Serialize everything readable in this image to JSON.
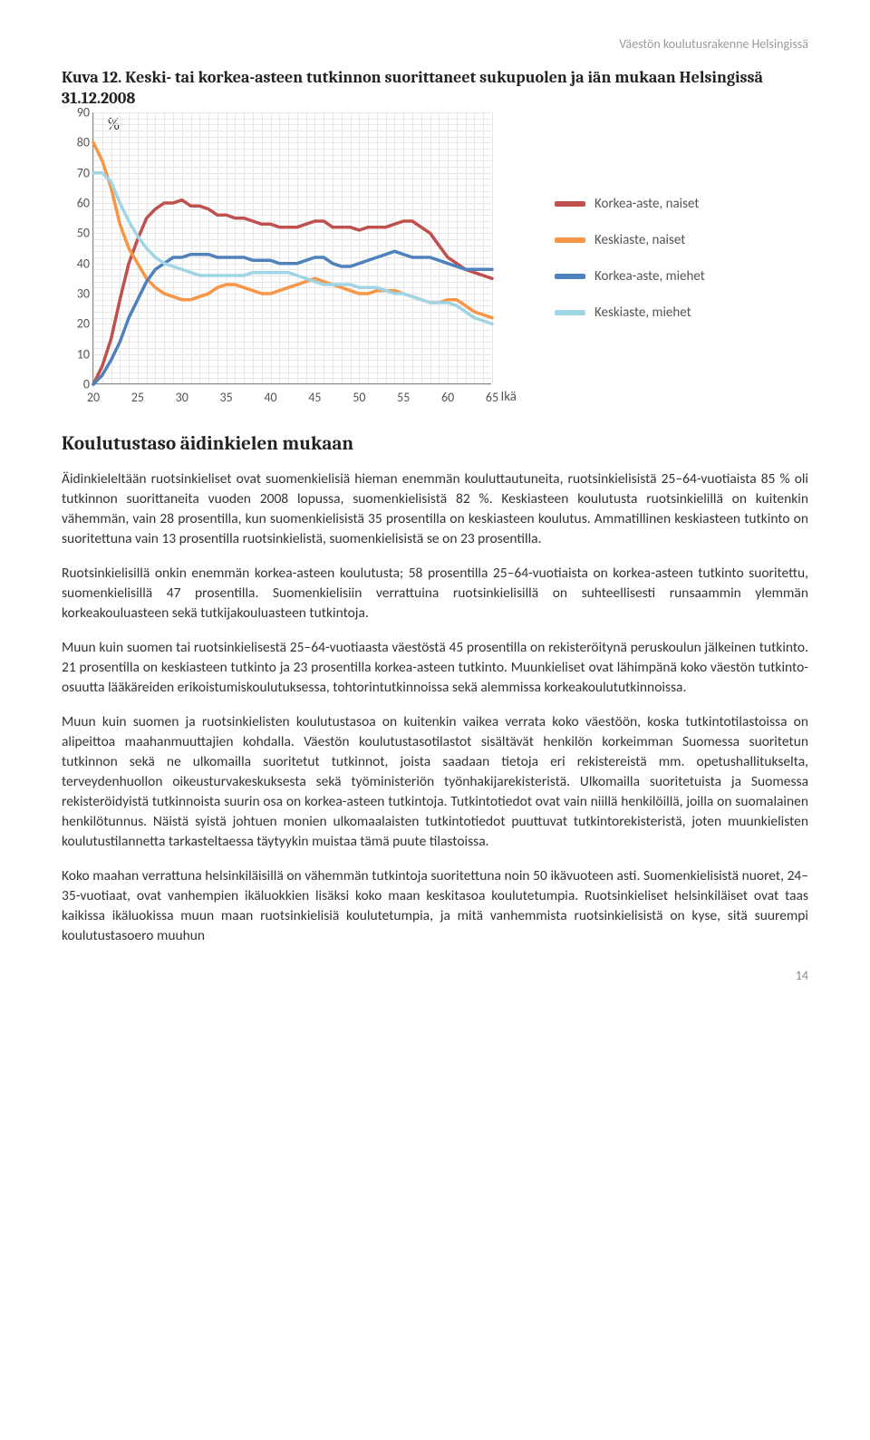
{
  "header_right": "Väestön koulutusrakenne Helsingissä",
  "figure_title": "Kuva 12. Keski- tai korkea-asteen tutkinnon suorittaneet sukupuolen ja iän mukaan Helsingissä 31.12.2008",
  "chart": {
    "type": "line",
    "unit_label": "%",
    "x_axis_title": "Ikä",
    "ylim": [
      0,
      90
    ],
    "ytick_step": 10,
    "yticks": [
      0,
      10,
      20,
      30,
      40,
      50,
      60,
      70,
      80,
      90
    ],
    "xlim": [
      20,
      65
    ],
    "xtick_step": 5,
    "xticks": [
      20,
      25,
      30,
      35,
      40,
      45,
      50,
      55,
      60,
      65
    ],
    "background_color": "#ffffff",
    "grid_color": "#e6e6e6",
    "minor_grid": true,
    "line_width": 3.5,
    "series": [
      {
        "id": "korkea_naiset",
        "label": "Korkea-aste, naiset",
        "color": "#c0504d",
        "points": [
          [
            20,
            0
          ],
          [
            21,
            6
          ],
          [
            22,
            15
          ],
          [
            23,
            28
          ],
          [
            24,
            40
          ],
          [
            25,
            48
          ],
          [
            26,
            55
          ],
          [
            27,
            58
          ],
          [
            28,
            60
          ],
          [
            29,
            60
          ],
          [
            30,
            61
          ],
          [
            31,
            59
          ],
          [
            32,
            59
          ],
          [
            33,
            58
          ],
          [
            34,
            56
          ],
          [
            35,
            56
          ],
          [
            36,
            55
          ],
          [
            37,
            55
          ],
          [
            38,
            54
          ],
          [
            39,
            53
          ],
          [
            40,
            53
          ],
          [
            41,
            52
          ],
          [
            42,
            52
          ],
          [
            43,
            52
          ],
          [
            44,
            53
          ],
          [
            45,
            54
          ],
          [
            46,
            54
          ],
          [
            47,
            52
          ],
          [
            48,
            52
          ],
          [
            49,
            52
          ],
          [
            50,
            51
          ],
          [
            51,
            52
          ],
          [
            52,
            52
          ],
          [
            53,
            52
          ],
          [
            54,
            53
          ],
          [
            55,
            54
          ],
          [
            56,
            54
          ],
          [
            57,
            52
          ],
          [
            58,
            50
          ],
          [
            59,
            46
          ],
          [
            60,
            42
          ],
          [
            61,
            40
          ],
          [
            62,
            38
          ],
          [
            63,
            37
          ],
          [
            64,
            36
          ],
          [
            65,
            35
          ]
        ]
      },
      {
        "id": "keski_naiset",
        "label": "Keskiaste, naiset",
        "color": "#f79646",
        "points": [
          [
            20,
            80
          ],
          [
            21,
            74
          ],
          [
            22,
            65
          ],
          [
            23,
            53
          ],
          [
            24,
            45
          ],
          [
            25,
            40
          ],
          [
            26,
            35
          ],
          [
            27,
            32
          ],
          [
            28,
            30
          ],
          [
            29,
            29
          ],
          [
            30,
            28
          ],
          [
            31,
            28
          ],
          [
            32,
            29
          ],
          [
            33,
            30
          ],
          [
            34,
            32
          ],
          [
            35,
            33
          ],
          [
            36,
            33
          ],
          [
            37,
            32
          ],
          [
            38,
            31
          ],
          [
            39,
            30
          ],
          [
            40,
            30
          ],
          [
            41,
            31
          ],
          [
            42,
            32
          ],
          [
            43,
            33
          ],
          [
            44,
            34
          ],
          [
            45,
            35
          ],
          [
            46,
            34
          ],
          [
            47,
            33
          ],
          [
            48,
            32
          ],
          [
            49,
            31
          ],
          [
            50,
            30
          ],
          [
            51,
            30
          ],
          [
            52,
            31
          ],
          [
            53,
            31
          ],
          [
            54,
            31
          ],
          [
            55,
            30
          ],
          [
            56,
            29
          ],
          [
            57,
            28
          ],
          [
            58,
            27
          ],
          [
            59,
            27
          ],
          [
            60,
            28
          ],
          [
            61,
            28
          ],
          [
            62,
            26
          ],
          [
            63,
            24
          ],
          [
            64,
            23
          ],
          [
            65,
            22
          ]
        ]
      },
      {
        "id": "korkea_miehet",
        "label": "Korkea-aste, miehet",
        "color": "#4f81bd",
        "points": [
          [
            20,
            0
          ],
          [
            21,
            3
          ],
          [
            22,
            8
          ],
          [
            23,
            14
          ],
          [
            24,
            22
          ],
          [
            25,
            28
          ],
          [
            26,
            34
          ],
          [
            27,
            38
          ],
          [
            28,
            40
          ],
          [
            29,
            42
          ],
          [
            30,
            42
          ],
          [
            31,
            43
          ],
          [
            32,
            43
          ],
          [
            33,
            43
          ],
          [
            34,
            42
          ],
          [
            35,
            42
          ],
          [
            36,
            42
          ],
          [
            37,
            42
          ],
          [
            38,
            41
          ],
          [
            39,
            41
          ],
          [
            40,
            41
          ],
          [
            41,
            40
          ],
          [
            42,
            40
          ],
          [
            43,
            40
          ],
          [
            44,
            41
          ],
          [
            45,
            42
          ],
          [
            46,
            42
          ],
          [
            47,
            40
          ],
          [
            48,
            39
          ],
          [
            49,
            39
          ],
          [
            50,
            40
          ],
          [
            51,
            41
          ],
          [
            52,
            42
          ],
          [
            53,
            43
          ],
          [
            54,
            44
          ],
          [
            55,
            43
          ],
          [
            56,
            42
          ],
          [
            57,
            42
          ],
          [
            58,
            42
          ],
          [
            59,
            41
          ],
          [
            60,
            40
          ],
          [
            61,
            39
          ],
          [
            62,
            38
          ],
          [
            63,
            38
          ],
          [
            64,
            38
          ],
          [
            65,
            38
          ]
        ]
      },
      {
        "id": "keski_miehet",
        "label": "Keskiaste, miehet",
        "color": "#9fd5e5",
        "points": [
          [
            20,
            70
          ],
          [
            21,
            70
          ],
          [
            22,
            67
          ],
          [
            23,
            60
          ],
          [
            24,
            54
          ],
          [
            25,
            49
          ],
          [
            26,
            45
          ],
          [
            27,
            42
          ],
          [
            28,
            40
          ],
          [
            29,
            39
          ],
          [
            30,
            38
          ],
          [
            31,
            37
          ],
          [
            32,
            36
          ],
          [
            33,
            36
          ],
          [
            34,
            36
          ],
          [
            35,
            36
          ],
          [
            36,
            36
          ],
          [
            37,
            36
          ],
          [
            38,
            37
          ],
          [
            39,
            37
          ],
          [
            40,
            37
          ],
          [
            41,
            37
          ],
          [
            42,
            37
          ],
          [
            43,
            36
          ],
          [
            44,
            35
          ],
          [
            45,
            34
          ],
          [
            46,
            33
          ],
          [
            47,
            33
          ],
          [
            48,
            33
          ],
          [
            49,
            33
          ],
          [
            50,
            32
          ],
          [
            51,
            32
          ],
          [
            52,
            32
          ],
          [
            53,
            31
          ],
          [
            54,
            30
          ],
          [
            55,
            30
          ],
          [
            56,
            29
          ],
          [
            57,
            28
          ],
          [
            58,
            27
          ],
          [
            59,
            27
          ],
          [
            60,
            27
          ],
          [
            61,
            26
          ],
          [
            62,
            24
          ],
          [
            63,
            22
          ],
          [
            64,
            21
          ],
          [
            65,
            20
          ]
        ]
      }
    ],
    "legend": [
      {
        "label": "Korkea-aste, naiset",
        "color": "#c0504d"
      },
      {
        "label": "Keskiaste, naiset",
        "color": "#f79646"
      },
      {
        "label": "Korkea-aste, miehet",
        "color": "#4f81bd"
      },
      {
        "label": "Keskiaste, miehet",
        "color": "#9fd5e5"
      }
    ]
  },
  "section_heading": "Koulutustaso äidinkielen mukaan",
  "paragraphs": [
    "Äidinkieleltään ruotsinkieliset ovat suomenkielisiä hieman enemmän kouluttautuneita, ruotsinkielisistä 25–64-vuotiaista 85 % oli tutkinnon suorittaneita vuoden 2008 lopussa, suomenkielisistä 82 %. Keskiasteen koulutusta ruotsinkielillä on kuitenkin vähemmän, vain 28 prosentilla, kun suomenkielisistä 35 prosentilla on keskiasteen koulutus. Ammatillinen keskiasteen tutkinto on suoritettuna vain 13 prosentilla ruotsinkielistä, suomenkielisistä se on 23 prosentilla.",
    "Ruotsinkielisillä onkin enemmän korkea-asteen koulutusta; 58 prosentilla 25–64-vuotiaista on korkea-asteen tutkinto suoritettu, suomenkielisillä 47 prosentilla. Suomenkielisiin verrattuina ruotsinkielisillä on suhteellisesti runsaammin ylemmän korkeakouluasteen sekä tutkijakouluasteen tutkintoja.",
    "Muun kuin suomen tai ruotsinkielisestä 25–64-vuotiaasta väestöstä 45 prosentilla on rekisteröitynä peruskoulun jälkeinen tutkinto. 21 prosentilla on keskiasteen tutkinto ja 23 prosentilla korkea-asteen tutkinto. Muunkieliset ovat lähimpänä koko väestön tutkinto-osuutta lääkäreiden erikoistumiskoulutuksessa, tohtorintutkinnoissa sekä alemmissa korkeakoulututkinnoissa.",
    "Muun kuin suomen ja ruotsinkielisten koulutustasoa on kuitenkin vaikea verrata koko väestöön, koska tutkintotilastoissa on alipeittoa maahanmuuttajien kohdalla. Väestön koulutustasotilastot sisältävät henkilön korkeimman Suomessa suoritetun tutkinnon sekä ne ulkomailla suoritetut tutkinnot, joista saadaan tietoja eri rekistereistä mm. opetushallitukselta, terveydenhuollon oikeusturvakeskuksesta sekä työministeriön työnhakijarekisteristä. Ulkomailla suoritetuista ja Suomessa rekisteröidyistä tutkinnoista suurin osa on korkea-asteen tutkintoja. Tutkintotiedot ovat vain niillä henkilöillä, joilla on suomalainen henkilötunnus. Näistä syistä johtuen monien ulkomaalaisten tutkintotiedot puuttuvat tutkintorekisteristä, joten muunkielisten koulutustilannetta tarkasteltaessa täytyykin muistaa tämä puute tilastoissa.",
    "Koko maahan verrattuna helsinkiläisillä on vähemmän tutkintoja suoritettuna noin 50 ikävuoteen asti. Suomenkielisistä nuoret, 24–35-vuotiaat, ovat vanhempien ikäluokkien lisäksi koko maan keskitasoa koulutetumpia. Ruotsinkieliset helsinkiläiset ovat taas kaikissa ikäluokissa muun maan ruotsinkielisiä koulutetumpia, ja mitä vanhemmista ruotsinkielisistä on kyse, sitä suurempi koulutustasoero muuhun"
  ],
  "page_number": "14"
}
